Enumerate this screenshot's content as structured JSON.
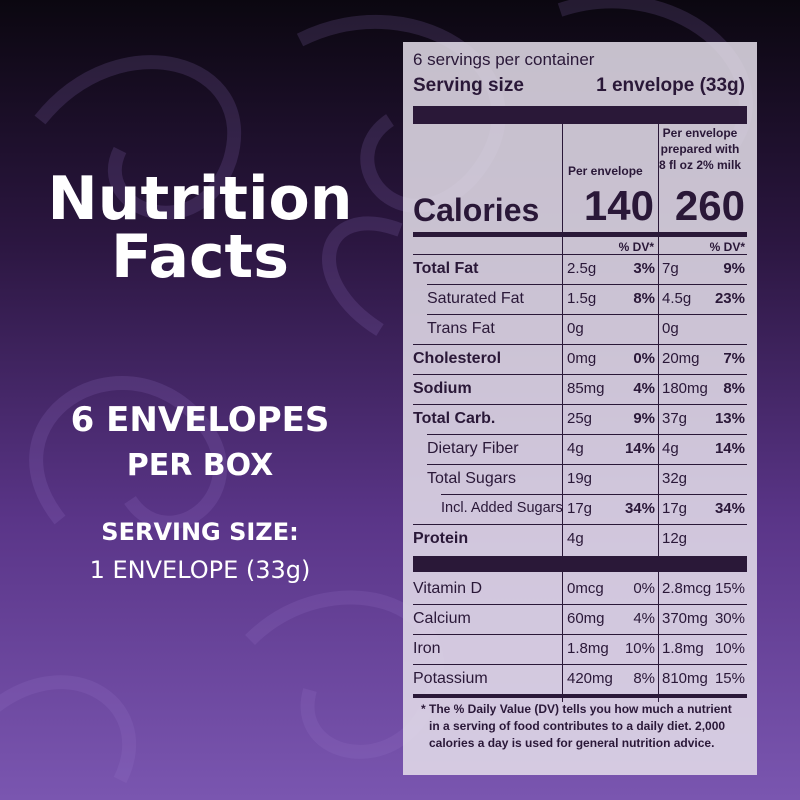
{
  "left": {
    "title": "Nutrition Facts",
    "line1": "6 ENVELOPES",
    "line2": "PER BOX",
    "line3": "SERVING SIZE:",
    "line4": "1 ENVELOPE (33g)"
  },
  "label": {
    "servings": "6 servings per container",
    "serving_size_label": "Serving size",
    "serving_size": "1 envelope (33g)",
    "col1_header": "Per envelope",
    "col2_header": [
      "Per envelope",
      "prepared with",
      "8 fl oz 2% milk"
    ],
    "calories_label": "Calories",
    "calories": [
      "140",
      "260"
    ],
    "dv_header": [
      "% DV*",
      "% DV*"
    ],
    "nutrients": [
      {
        "name": "Total Fat",
        "bold": true,
        "indent": 0,
        "col1": [
          "2.5g",
          "3%"
        ],
        "col2": [
          "7g",
          "9%"
        ]
      },
      {
        "name": "Saturated Fat",
        "bold": false,
        "indent": 1,
        "col1": [
          "1.5g",
          "8%"
        ],
        "col2": [
          "4.5g",
          "23%"
        ]
      },
      {
        "name": "Trans Fat",
        "bold": false,
        "indent": 1,
        "col1": [
          "0g"
        ],
        "col2": [
          "0g"
        ]
      },
      {
        "name": "Cholesterol",
        "bold": true,
        "indent": 0,
        "col1": [
          "0mg",
          "0%"
        ],
        "col2": [
          "20mg",
          "7%"
        ]
      },
      {
        "name": "Sodium",
        "bold": true,
        "indent": 0,
        "col1": [
          "85mg",
          "4%"
        ],
        "col2": [
          "180mg",
          "8%"
        ]
      },
      {
        "name": "Total Carb.",
        "bold": true,
        "indent": 0,
        "col1": [
          "25g",
          "9%"
        ],
        "col2": [
          "37g",
          "13%"
        ]
      },
      {
        "name": "Dietary Fiber",
        "bold": false,
        "indent": 1,
        "col1": [
          "4g",
          "14%"
        ],
        "col2": [
          "4g",
          "14%"
        ]
      },
      {
        "name": "Total Sugars",
        "bold": false,
        "indent": 1,
        "col1": [
          "19g"
        ],
        "col2": [
          "32g"
        ]
      },
      {
        "name": "Incl. Added Sugars",
        "bold": false,
        "indent": 2,
        "col1": [
          "17g",
          "34%"
        ],
        "col2": [
          "17g",
          "34%"
        ]
      },
      {
        "name": "Protein",
        "bold": true,
        "indent": 0,
        "col1": [
          "4g"
        ],
        "col2": [
          "12g"
        ]
      }
    ],
    "vitamins": [
      {
        "name": "Vitamin D",
        "col1": [
          "0mcg",
          "0%"
        ],
        "col2": [
          "2.8mcg",
          "15%"
        ]
      },
      {
        "name": "Calcium",
        "col1": [
          "60mg",
          "4%"
        ],
        "col2": [
          "370mg",
          "30%"
        ]
      },
      {
        "name": "Iron",
        "col1": [
          "1.8mg",
          "10%"
        ],
        "col2": [
          "1.8mg",
          "10%"
        ]
      },
      {
        "name": "Potassium",
        "col1": [
          "420mg",
          "8%"
        ],
        "col2": [
          "810mg",
          "15%"
        ]
      }
    ],
    "footnote": [
      "* The % Daily Value (DV) tells you how much  a nutrient",
      "in a serving of food contributes to a daily diet. 2,000",
      "calories a day is used for general nutrition advice."
    ]
  }
}
